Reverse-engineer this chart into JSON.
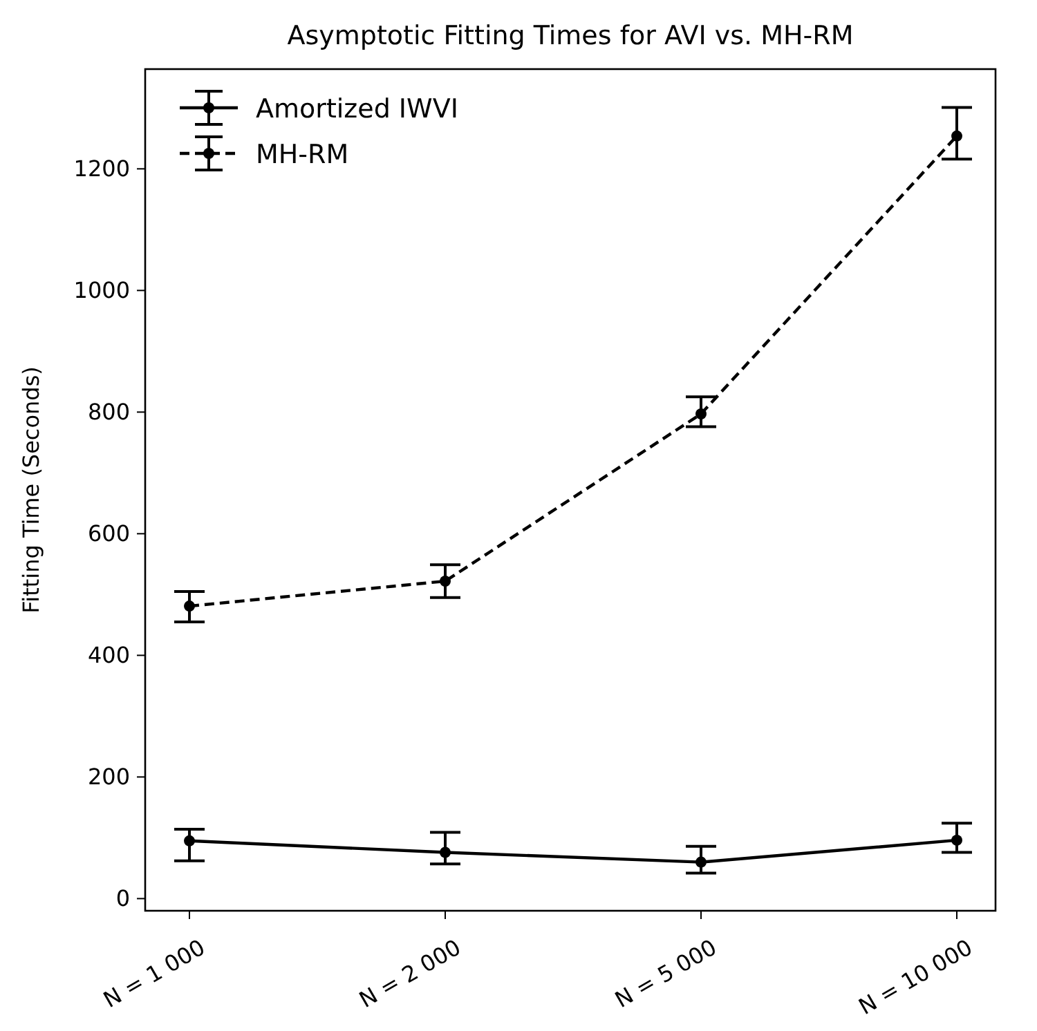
{
  "chart_data": {
    "type": "line",
    "title": "Asymptotic Fitting Times for AVI vs. MH-RM",
    "ylabel": "Fitting Time (Seconds)",
    "categories": [
      "N = 1 000",
      "N = 2 000",
      "N = 5 000",
      "N = 10 000"
    ],
    "series": [
      {
        "name": "Amortized IWVI",
        "color": "#000000",
        "line_style": "solid",
        "values": [
          95,
          76,
          60,
          96
        ],
        "errors": [
          [
            62,
            114
          ],
          [
            57,
            109
          ],
          [
            42,
            86
          ],
          [
            76,
            124
          ]
        ]
      },
      {
        "name": "MH-RM",
        "color": "#000000",
        "line_style": "dashed",
        "values": [
          481,
          522,
          797,
          1254
        ],
        "errors": [
          [
            455,
            505
          ],
          [
            495,
            549
          ],
          [
            776,
            825
          ],
          [
            1216,
            1301
          ]
        ]
      }
    ],
    "ylim": [
      -20,
      1364
    ],
    "yticks": [
      0,
      200,
      400,
      600,
      800,
      1000,
      1200
    ],
    "marker": "circle",
    "legend": "top left",
    "grid": false
  }
}
